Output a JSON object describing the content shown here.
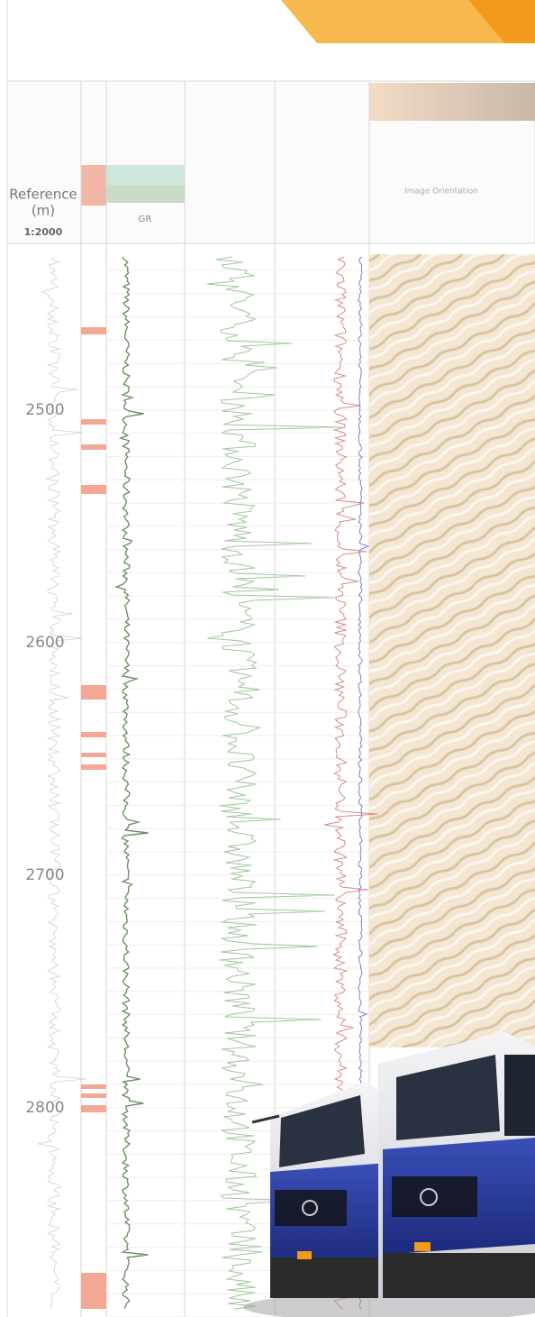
{
  "header": {
    "reference": "Reference",
    "unit": "(m)",
    "scale": "1:2000",
    "gr": "GR",
    "image_orientation": "Image Orientation"
  },
  "depth_labels": [
    2500,
    2600,
    2700,
    2800
  ]
}
